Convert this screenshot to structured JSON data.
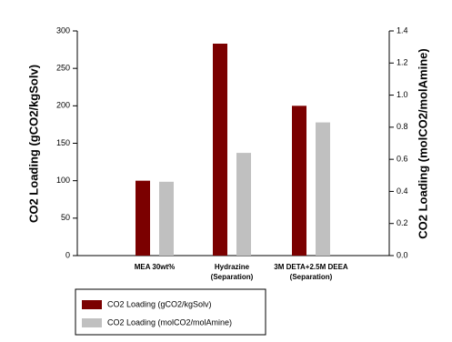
{
  "chart_data": {
    "type": "bar",
    "categories": [
      "MEA 30wt%",
      "Hydrazine\n(Separation)",
      "3M DETA+2.5M DEEA\n(Separation)"
    ],
    "y_label": "CO2 Loading (gCO2/kgSolv)",
    "y2_label": "CO2 Loading (molCO2/molAmine)",
    "ylim": [
      0,
      300
    ],
    "yticks": [
      0,
      50,
      100,
      150,
      200,
      250,
      300
    ],
    "y2lim": [
      0,
      1.4
    ],
    "y2ticks": [
      {
        "value": 0,
        "label": "0.0"
      },
      0.2,
      0.4,
      0.6,
      0.8,
      {
        "value": 1,
        "label": "1.0"
      },
      1.2,
      1.4
    ],
    "series": [
      {
        "name": "CO2 Loading (gCO2/kgSolv)",
        "color": "#7b0000",
        "values": [
          100,
          283,
          200
        ]
      },
      {
        "name": "CO2 Loading (molCO2/molAmine)",
        "color": "#c0c0c0",
        "values": [
          0.46,
          0.64,
          0.83
        ],
        "axis": "y2"
      }
    ]
  }
}
